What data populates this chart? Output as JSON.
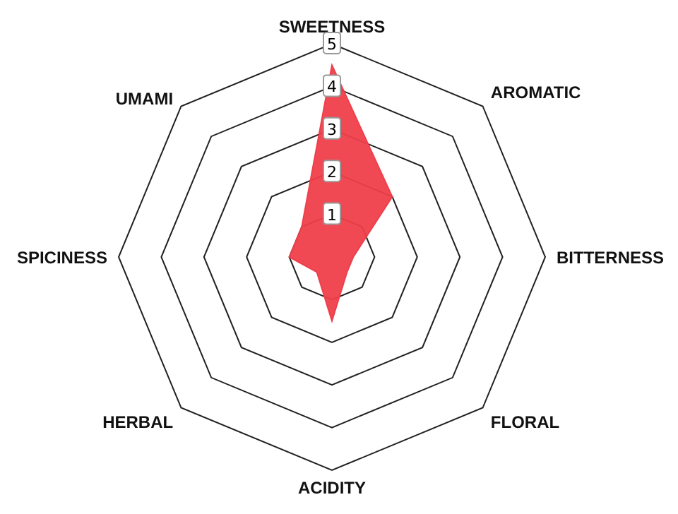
{
  "chart_data": {
    "type": "radar",
    "categories": [
      "SWEETNESS",
      "AROMATIC",
      "BITTERNESS",
      "FLORAL",
      "ACIDITY",
      "HERBAL",
      "SPICINESS",
      "UMAMI"
    ],
    "series": [
      {
        "color": "#ef3f4a",
        "values": [
          4.5,
          2,
          0.5,
          0.5,
          1.5,
          0.5,
          1,
          1
        ]
      }
    ],
    "ylim": [
      0,
      5
    ],
    "yticks": [
      1,
      2,
      3,
      4,
      5
    ]
  }
}
